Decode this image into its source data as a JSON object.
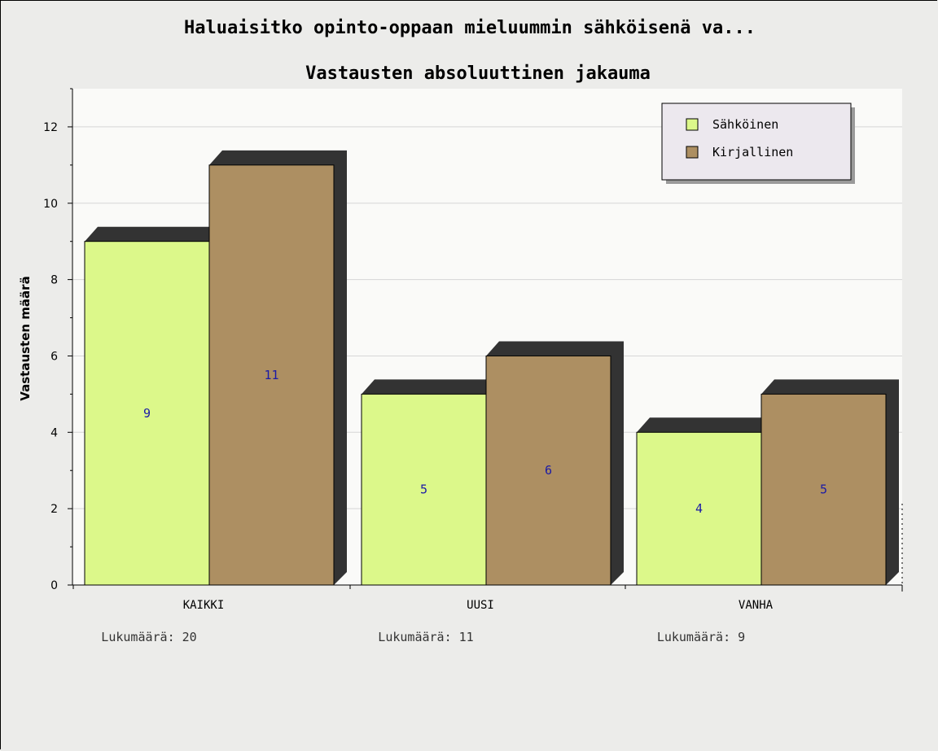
{
  "chart_data": {
    "type": "bar",
    "title": "Haluaisitko opinto-oppaan mieluummin sähköisenä va...",
    "subtitle": "Vastausten absoluuttinen jakauma",
    "ylabel": "Vastausten määrä",
    "xlabel": "",
    "ylim": [
      0,
      13
    ],
    "yticks": [
      0,
      2,
      4,
      6,
      8,
      10,
      12
    ],
    "categories": [
      "KAIKKI",
      "UUSI",
      "VANHA"
    ],
    "category_counts": [
      "Lukumäärä: 20",
      "Lukumäärä: 11",
      "Lukumäärä: 9"
    ],
    "series": [
      {
        "name": "Sähköinen",
        "values": [
          9,
          5,
          4
        ],
        "color": "#dcf88a"
      },
      {
        "name": "Kirjallinen",
        "values": [
          11,
          6,
          5
        ],
        "color": "#ad8f62"
      }
    ],
    "legend_position": "top-right",
    "grid": true,
    "colors": {
      "background": "#ececea",
      "plot_background": "#fafaf8",
      "shadow": "#333333",
      "data_label": "#1a1aa6"
    }
  }
}
